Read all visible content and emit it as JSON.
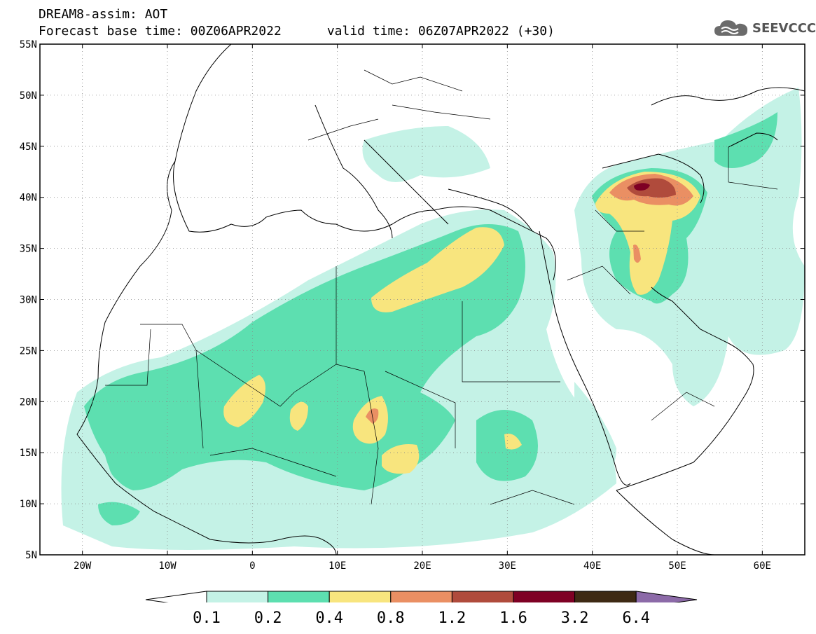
{
  "title_line1": "DREAM8-assim: AOT",
  "title_line2": "Forecast base time: 00Z06APR2022",
  "valid_time": "valid time: 06Z07APR2022 (+30)",
  "logo": {
    "text": "SEEVCCC",
    "icon": "cloud-icon"
  },
  "map": {
    "lon_range": [
      -25,
      65
    ],
    "lat_range": [
      5,
      55
    ],
    "lat_ticks": [
      "5N",
      "10N",
      "15N",
      "20N",
      "25N",
      "30N",
      "35N",
      "40N",
      "45N",
      "50N",
      "55N"
    ],
    "lon_ticks": [
      "20W",
      "10W",
      "0",
      "10E",
      "20E",
      "30E",
      "40E",
      "50E",
      "60E"
    ],
    "grid": "dotted"
  },
  "colorbar": {
    "labels": [
      "0.1",
      "0.2",
      "0.4",
      "0.8",
      "1.2",
      "1.6",
      "3.2",
      "6.4"
    ],
    "colors": [
      "#ffffff",
      "#c4f2e6",
      "#5ddfb0",
      "#f8e57e",
      "#ea8f63",
      "#b04b3c",
      "#7e0024",
      "#3e2a14",
      "#8c6aa8"
    ]
  }
}
